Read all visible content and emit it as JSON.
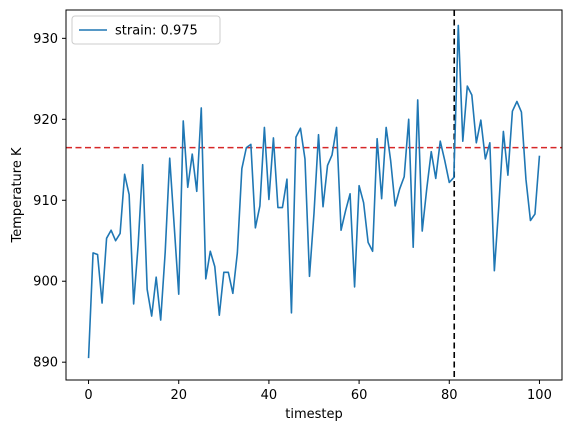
{
  "chart_data": {
    "type": "line",
    "xlabel": "timestep",
    "ylabel": "Temperature K",
    "xlim": [
      -5,
      105
    ],
    "ylim": [
      887.8,
      933.5
    ],
    "xticks": [
      0,
      20,
      40,
      60,
      80,
      100
    ],
    "yticks": [
      890,
      900,
      910,
      920,
      930
    ],
    "legend_position": "upper-left",
    "grid": false,
    "series": [
      {
        "name": "strain: 0.975",
        "color": "#1f77b4",
        "x": [
          0,
          1,
          2,
          3,
          4,
          5,
          6,
          7,
          8,
          9,
          10,
          11,
          12,
          13,
          14,
          15,
          16,
          17,
          18,
          19,
          20,
          21,
          22,
          23,
          24,
          25,
          26,
          27,
          28,
          29,
          30,
          31,
          32,
          33,
          34,
          35,
          36,
          37,
          38,
          39,
          40,
          41,
          42,
          43,
          44,
          45,
          46,
          47,
          48,
          49,
          50,
          51,
          52,
          53,
          54,
          55,
          56,
          57,
          58,
          59,
          60,
          61,
          62,
          63,
          64,
          65,
          66,
          67,
          68,
          69,
          70,
          71,
          72,
          73,
          74,
          75,
          76,
          77,
          78,
          79,
          80,
          81,
          82,
          83,
          84,
          85,
          86,
          87,
          88,
          89,
          90,
          91,
          92,
          93,
          94,
          95,
          96,
          97,
          98,
          99,
          100
        ],
        "y": [
          890.5,
          903.5,
          903.3,
          897.3,
          905.3,
          906.3,
          905,
          905.9,
          913.2,
          910.7,
          897.2,
          904.5,
          914.4,
          899,
          895.7,
          900.5,
          895.2,
          903.6,
          915.2,
          906.8,
          898.4,
          919.8,
          911.6,
          915.7,
          911.1,
          921.4,
          900.3,
          903.7,
          901.8,
          895.8,
          901.1,
          901.1,
          898.5,
          903.5,
          913.9,
          916.5,
          916.9,
          906.6,
          909.3,
          919,
          910.1,
          917.7,
          909.1,
          909.1,
          912.6,
          896.1,
          917.8,
          918.9,
          915.1,
          900.6,
          908.4,
          918.1,
          909.2,
          914.3,
          915.6,
          919,
          906.3,
          908.7,
          910.8,
          899.3,
          911.8,
          909.7,
          904.8,
          903.7,
          917.6,
          910.2,
          919,
          914.9,
          909.3,
          911.4,
          912.9,
          920,
          904.2,
          922.4,
          906.2,
          911.4,
          916,
          912.7,
          917.3,
          914.9,
          912.2,
          912.8,
          931.6,
          917.3,
          924.1,
          923,
          917.1,
          919.9,
          915.1,
          917.1,
          901.3,
          909.4,
          918.5,
          913.1,
          921,
          922.2,
          920.9,
          912.6,
          907.5,
          908.3,
          915.5
        ]
      }
    ],
    "hlines": [
      {
        "y": 916.5,
        "color": "#d62728",
        "style": "dashed"
      }
    ],
    "vlines": [
      {
        "x": 81.1,
        "color": "#000000",
        "style": "dashed"
      }
    ]
  }
}
